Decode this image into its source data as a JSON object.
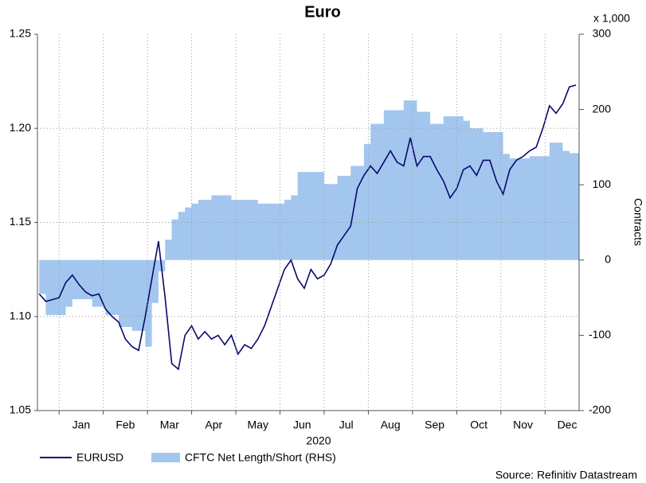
{
  "chart_data": {
    "type": "line",
    "title": "Euro",
    "xlabel": "2020",
    "y2label": "Contracts",
    "y2_unit": "x 1,000",
    "source": "Source: Refinitiv Datastream",
    "xlim": [
      -0.49,
      11.77
    ],
    "xticks": [
      {
        "value": 0,
        "label": "Jan"
      },
      {
        "value": 1,
        "label": "Feb"
      },
      {
        "value": 2,
        "label": "Mar"
      },
      {
        "value": 3,
        "label": "Apr"
      },
      {
        "value": 4,
        "label": "May"
      },
      {
        "value": 5,
        "label": "Jun"
      },
      {
        "value": 6,
        "label": "Jul"
      },
      {
        "value": 7,
        "label": "Aug"
      },
      {
        "value": 8,
        "label": "Sep"
      },
      {
        "value": 9,
        "label": "Oct"
      },
      {
        "value": 10,
        "label": "Nov"
      },
      {
        "value": 11,
        "label": "Dec"
      }
    ],
    "ylim": [
      1.05,
      1.25
    ],
    "yticks": [
      1.05,
      {
        "value": 1.1,
        "label": "1.10"
      },
      1.15,
      {
        "value": 1.2,
        "label": "1.20"
      },
      1.25
    ],
    "y2lim": [
      -200,
      300
    ],
    "y2ticks": [
      -200,
      -100,
      0,
      100,
      200,
      300
    ],
    "grid": true,
    "x": [
      -0.45,
      -0.3,
      -0.15,
      0,
      0.15,
      0.3,
      0.45,
      0.6,
      0.75,
      0.9,
      1.05,
      1.2,
      1.35,
      1.5,
      1.65,
      1.8,
      1.95,
      2.1,
      2.25,
      2.4,
      2.55,
      2.7,
      2.85,
      3.0,
      3.15,
      3.3,
      3.45,
      3.6,
      3.75,
      3.9,
      4.05,
      4.2,
      4.35,
      4.5,
      4.65,
      4.8,
      4.95,
      5.1,
      5.25,
      5.4,
      5.55,
      5.7,
      5.85,
      6.0,
      6.15,
      6.3,
      6.45,
      6.6,
      6.75,
      6.9,
      7.05,
      7.2,
      7.35,
      7.5,
      7.65,
      7.8,
      7.95,
      8.1,
      8.25,
      8.4,
      8.55,
      8.7,
      8.85,
      9.0,
      9.15,
      9.3,
      9.45,
      9.6,
      9.75,
      9.9,
      10.05,
      10.2,
      10.35,
      10.5,
      10.65,
      10.8,
      10.95,
      11.1,
      11.25,
      11.4,
      11.55,
      11.7
    ],
    "series": [
      {
        "name": "EURUSD",
        "color": "#0a0a6e",
        "style": "line",
        "values": [
          1.112,
          1.108,
          1.109,
          1.11,
          1.118,
          1.122,
          1.117,
          1.113,
          1.111,
          1.112,
          1.104,
          1.1,
          1.097,
          1.088,
          1.084,
          1.082,
          1.1,
          1.12,
          1.14,
          1.11,
          1.075,
          1.072,
          1.09,
          1.095,
          1.088,
          1.092,
          1.088,
          1.09,
          1.085,
          1.09,
          1.08,
          1.085,
          1.083,
          1.088,
          1.095,
          1.105,
          1.115,
          1.125,
          1.13,
          1.12,
          1.115,
          1.125,
          1.12,
          1.122,
          1.128,
          1.138,
          1.143,
          1.148,
          1.168,
          1.175,
          1.18,
          1.176,
          1.182,
          1.188,
          1.182,
          1.18,
          1.195,
          1.18,
          1.185,
          1.185,
          1.178,
          1.172,
          1.163,
          1.168,
          1.178,
          1.18,
          1.175,
          1.183,
          1.183,
          1.172,
          1.165,
          1.178,
          1.183,
          1.185,
          1.188,
          1.19,
          1.2,
          1.212,
          1.208,
          1.213,
          1.222,
          1.223
        ]
      },
      {
        "name": "CFTC Net Length/Short (RHS)",
        "color": "#a3c6ee",
        "style": "step-area",
        "axis": "y2",
        "values": [
          -45,
          -73,
          -73,
          -73,
          -62,
          -52,
          -52,
          -52,
          -62,
          -62,
          -73,
          -73,
          -89,
          -89,
          -94,
          -94,
          -115,
          -57,
          -15,
          27,
          54,
          64,
          70,
          75,
          80,
          80,
          86,
          86,
          86,
          80,
          80,
          80,
          80,
          75,
          75,
          75,
          75,
          80,
          86,
          117,
          117,
          117,
          117,
          101,
          101,
          112,
          112,
          125,
          125,
          154,
          181,
          181,
          199,
          199,
          199,
          212,
          212,
          197,
          197,
          181,
          181,
          191,
          191,
          191,
          185,
          175,
          175,
          170,
          170,
          170,
          141,
          135,
          135,
          135,
          138,
          138,
          138,
          156,
          156,
          145,
          142,
          142
        ]
      }
    ]
  }
}
